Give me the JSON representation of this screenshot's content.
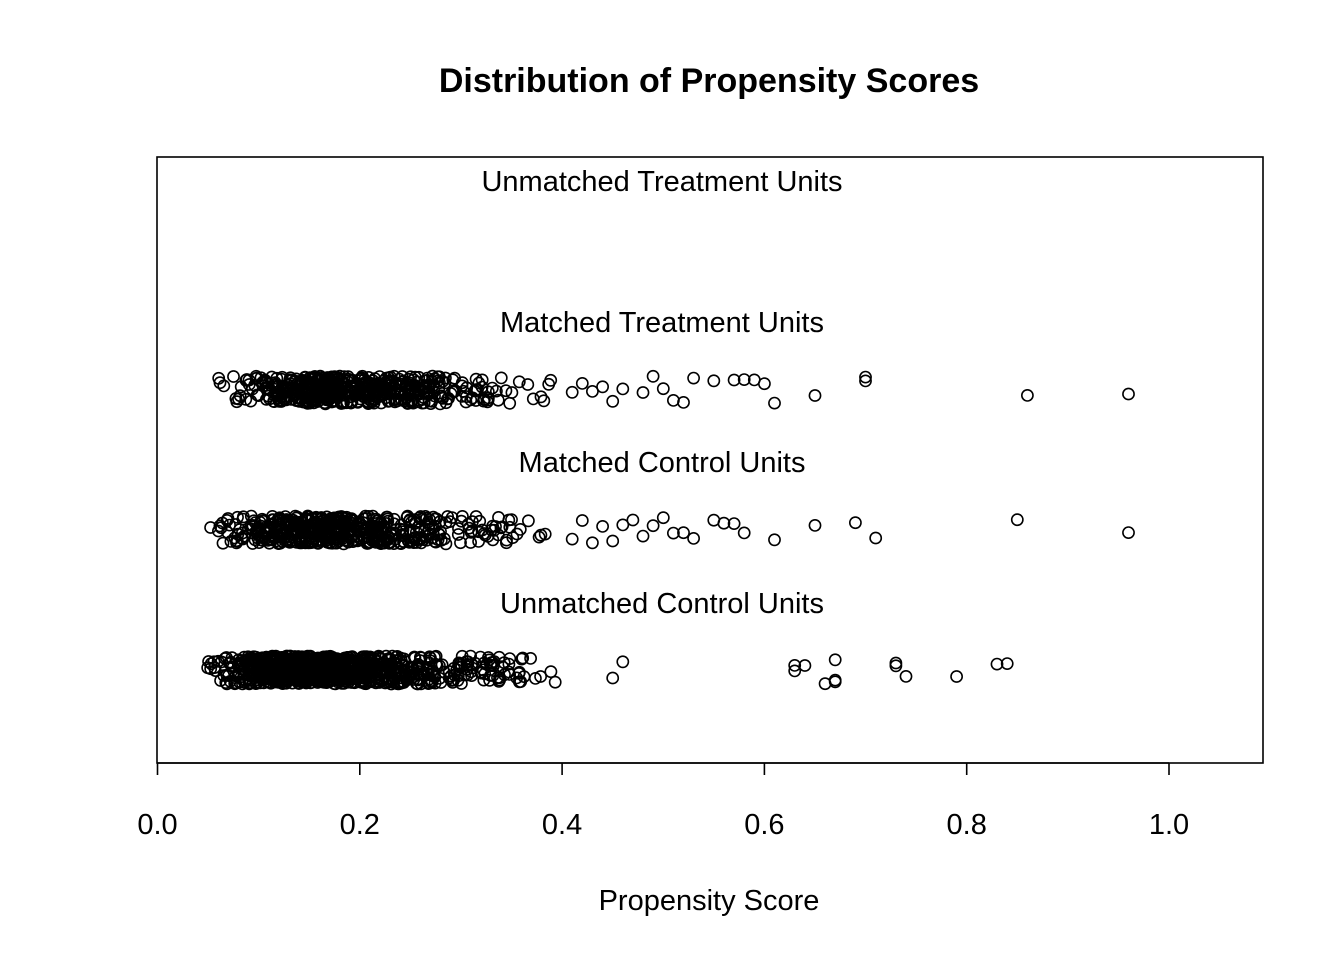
{
  "chart_data": {
    "type": "scatter",
    "title": "Distribution of Propensity Scores",
    "xlabel": "Propensity Score",
    "ylabel": "",
    "xlim": [
      0.0,
      1.1
    ],
    "xticks": [
      "0.0",
      "0.2",
      "0.4",
      "0.6",
      "0.8",
      "1.0"
    ],
    "grid": false,
    "legend": "none",
    "groups": [
      {
        "name": "Unmatched Treatment Units",
        "points": []
      },
      {
        "name": "Matched Treatment Units",
        "range": [
          0.05,
          0.4
        ],
        "mode": 0.16,
        "dense_count": 520,
        "points": [
          0.41,
          0.42,
          0.43,
          0.44,
          0.45,
          0.46,
          0.48,
          0.49,
          0.5,
          0.51,
          0.52,
          0.53,
          0.55,
          0.57,
          0.58,
          0.59,
          0.6,
          0.61,
          0.65,
          0.7,
          0.7,
          0.86,
          0.96
        ]
      },
      {
        "name": "Matched Control Units",
        "range": [
          0.05,
          0.4
        ],
        "mode": 0.14,
        "dense_count": 520,
        "points": [
          0.41,
          0.42,
          0.43,
          0.44,
          0.45,
          0.46,
          0.47,
          0.48,
          0.49,
          0.5,
          0.51,
          0.52,
          0.53,
          0.55,
          0.56,
          0.57,
          0.58,
          0.61,
          0.65,
          0.69,
          0.71,
          0.85,
          0.96
        ]
      },
      {
        "name": "Unmatched Control Units",
        "range": [
          0.04,
          0.41
        ],
        "mode": 0.12,
        "dense_count": 900,
        "points": [
          0.45,
          0.46,
          0.63,
          0.63,
          0.64,
          0.66,
          0.67,
          0.67,
          0.67,
          0.73,
          0.73,
          0.74,
          0.79,
          0.83,
          0.84
        ]
      }
    ]
  }
}
